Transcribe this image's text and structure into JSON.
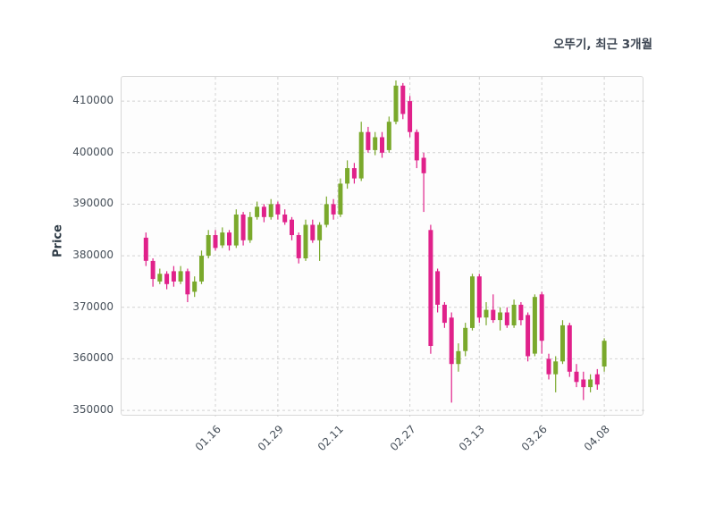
{
  "title": "오뚜기, 최근 3개월",
  "chart_data": {
    "type": "candlestick",
    "title": "오뚜기, 최근 3개월",
    "xlabel": "",
    "ylabel": "Price",
    "ylim": [
      348800,
      414700
    ],
    "grid": "dashed",
    "legend": "none",
    "up_color": "#7aa92c",
    "down_color": "#e0218a",
    "yticks": [
      350000,
      360000,
      370000,
      380000,
      390000,
      400000,
      410000
    ],
    "xticks": [
      {
        "label": "01.16",
        "i": 10
      },
      {
        "label": "01.29",
        "i": 19
      },
      {
        "label": "02.11",
        "i": 27.6
      },
      {
        "label": "02.27",
        "i": 38
      },
      {
        "label": "03.13",
        "i": 48
      },
      {
        "label": "03.26",
        "i": 57
      },
      {
        "label": "04.08",
        "i": 66
      }
    ],
    "columns": [
      "date",
      "open",
      "high",
      "low",
      "close"
    ],
    "candles": [
      [
        "01.02",
        383500,
        384500,
        378000,
        379000
      ],
      [
        "01.03",
        379000,
        379500,
        374000,
        375500
      ],
      [
        "01.04",
        375000,
        377500,
        374500,
        376500
      ],
      [
        "01.05",
        376500,
        377000,
        373500,
        374500
      ],
      [
        "01.08",
        377000,
        378000,
        374000,
        375000
      ],
      [
        "01.09",
        375000,
        378000,
        374500,
        377000
      ],
      [
        "01.10",
        377000,
        377500,
        371000,
        372500
      ],
      [
        "01.11",
        373000,
        376000,
        372000,
        375000
      ],
      [
        "01.12",
        375000,
        381000,
        374500,
        380000
      ],
      [
        "01.15",
        380000,
        385000,
        379500,
        384000
      ],
      [
        "01.16",
        384000,
        385000,
        381000,
        381500
      ],
      [
        "01.17",
        382000,
        385500,
        381500,
        384500
      ],
      [
        "01.18",
        384500,
        385000,
        381000,
        382000
      ],
      [
        "01.19",
        382000,
        389000,
        381500,
        388000
      ],
      [
        "01.22",
        388000,
        388500,
        382000,
        383000
      ],
      [
        "01.23",
        383000,
        388500,
        382500,
        387500
      ],
      [
        "01.24",
        387500,
        390500,
        387000,
        389500
      ],
      [
        "01.25",
        389500,
        390000,
        386500,
        387500
      ],
      [
        "01.26",
        387500,
        391000,
        387000,
        390000
      ],
      [
        "01.29",
        390000,
        390500,
        387000,
        388000
      ],
      [
        "01.30",
        388000,
        389000,
        386000,
        386500
      ],
      [
        "01.31",
        387000,
        387500,
        383000,
        384000
      ],
      [
        "02.01",
        384000,
        384500,
        378500,
        379500
      ],
      [
        "02.02",
        379500,
        387000,
        379000,
        386000
      ],
      [
        "02.05",
        386000,
        387000,
        382500,
        383000
      ],
      [
        "02.06",
        383000,
        386500,
        379000,
        386000
      ],
      [
        "02.07",
        386000,
        391500,
        385500,
        390000
      ],
      [
        "02.08",
        390000,
        391000,
        387000,
        388000
      ],
      [
        "02.13",
        388000,
        395000,
        387500,
        394000
      ],
      [
        "02.14",
        394000,
        398500,
        393000,
        397000
      ],
      [
        "02.15",
        397000,
        398000,
        394000,
        395000
      ],
      [
        "02.16",
        395000,
        406000,
        394500,
        404000
      ],
      [
        "02.19",
        404000,
        405000,
        400000,
        400500
      ],
      [
        "02.20",
        400500,
        404000,
        399500,
        403000
      ],
      [
        "02.21",
        403000,
        404000,
        399000,
        400000
      ],
      [
        "02.22",
        400500,
        407000,
        400000,
        406000
      ],
      [
        "02.23",
        406000,
        414000,
        405500,
        413000
      ],
      [
        "02.26",
        413000,
        413500,
        406500,
        407500
      ],
      [
        "02.27",
        410000,
        411000,
        403000,
        404000
      ],
      [
        "02.28",
        404000,
        404500,
        397000,
        398500
      ],
      [
        "02.29",
        399000,
        400000,
        388500,
        396000
      ],
      [
        "03.04",
        385000,
        386000,
        361000,
        362500
      ],
      [
        "03.05",
        377000,
        377500,
        369000,
        370500
      ],
      [
        "03.06",
        370500,
        371000,
        366000,
        367000
      ],
      [
        "03.07",
        368000,
        369000,
        351500,
        359000
      ],
      [
        "03.08",
        359000,
        363000,
        357500,
        361500
      ],
      [
        "03.11",
        361500,
        367000,
        360500,
        366000
      ],
      [
        "03.12",
        366000,
        376500,
        365500,
        376000
      ],
      [
        "03.13",
        376000,
        376500,
        367000,
        368000
      ],
      [
        "03.14",
        368000,
        371000,
        366500,
        369500
      ],
      [
        "03.15",
        369500,
        372500,
        367000,
        367500
      ],
      [
        "03.18",
        367500,
        370000,
        365500,
        369000
      ],
      [
        "03.19",
        369000,
        370000,
        366000,
        366500
      ],
      [
        "03.20",
        366500,
        371500,
        366000,
        370500
      ],
      [
        "03.21",
        370500,
        371000,
        366500,
        367500
      ],
      [
        "03.22",
        368500,
        369000,
        359500,
        360500
      ],
      [
        "03.25",
        361000,
        372500,
        360500,
        372000
      ],
      [
        "03.26",
        372500,
        373000,
        361000,
        363500
      ],
      [
        "03.27",
        360000,
        361000,
        356000,
        357000
      ],
      [
        "03.28",
        357000,
        360500,
        353500,
        359500
      ],
      [
        "03.29",
        359500,
        367500,
        359000,
        366500
      ],
      [
        "04.01",
        366500,
        367000,
        356500,
        357500
      ],
      [
        "04.02",
        357500,
        359000,
        354500,
        355500
      ],
      [
        "04.03",
        356000,
        357500,
        352000,
        354500
      ],
      [
        "04.04",
        354500,
        357000,
        353500,
        356000
      ],
      [
        "04.05",
        357000,
        358000,
        354000,
        355000
      ],
      [
        "04.08",
        358500,
        364000,
        357500,
        363500
      ]
    ]
  }
}
